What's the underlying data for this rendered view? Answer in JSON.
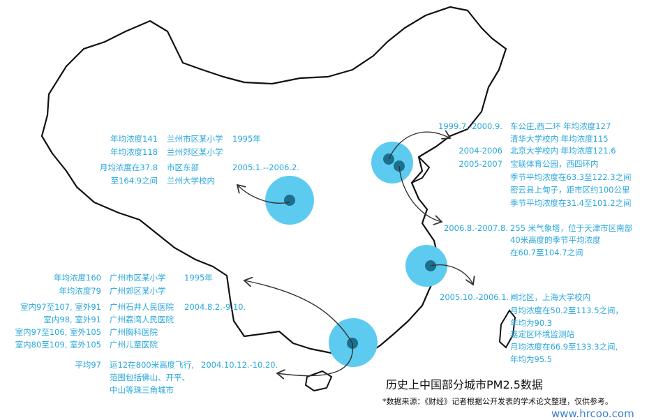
{
  "title": "历史上中国部分城市PM2.5数据",
  "source": "*数据来源：《财经》记者根据公开发表的学术论文整理，仅供参考。",
  "watermark": "www.hrcoo.com",
  "colors": {
    "text": "#2aa7dc",
    "circle": "#5ccbef",
    "dot": "#1c6f8e"
  },
  "lanzhou": {
    "rows": [
      {
        "value": "年均浓度141",
        "site": "兰州市区某小学",
        "date": "1995年"
      },
      {
        "value": "年均浓度118",
        "site": "兰州郊区某小学",
        "date": ""
      },
      {
        "value": "月均浓度在37.8",
        "site": "市区东部",
        "date": "2005.1.--2006.2."
      },
      {
        "value": "至164.9之间",
        "site": "兰州大学校内",
        "date": ""
      }
    ]
  },
  "beijing": {
    "rows": [
      {
        "date": "1999.7.-2000.9.",
        "text": "车公庄,西二环    年均浓度127"
      },
      {
        "date": "",
        "text": "清华大学校内    年均浓度115"
      },
      {
        "date": "2004-2006",
        "text": "北京大学校内    年均浓度121.6"
      },
      {
        "date": "2005-2007",
        "text": "宝联体育公园，西四环内"
      },
      {
        "date": "",
        "text": "季节平均浓度在63.3至122.3之间"
      },
      {
        "date": "",
        "text": "密云县上甸子，距市区约100公里"
      },
      {
        "date": "",
        "text": "季节平均浓度在31.4至101.2之间"
      }
    ]
  },
  "tianjin": {
    "date": "2006.8.-2007.8.",
    "lines": [
      "255 米气象塔，位于天津市区南部",
      "40米高度的季节平均浓度",
      "在60.7至104.7之间"
    ]
  },
  "shanghai": {
    "date": "2005.10.-2006.1.",
    "lines": [
      "闸北区，上海大学校内",
      "月均浓度在50.2至113.5之间，",
      "年均为90.3",
      "嘉定区环境监测站",
      "月均浓度在66.9至133.3之间,",
      "年均为95.5"
    ]
  },
  "guangzhou": {
    "rows": [
      {
        "value": "年均浓度160",
        "site": "广州市区某小学",
        "date": "1995年"
      },
      {
        "value": "年均浓度79",
        "site": "广州郊区某小学",
        "date": ""
      },
      {
        "value": "室内97至107, 室外91",
        "site": "广州石井人民医院",
        "date": "2004.8.2.-9.10."
      },
      {
        "value": "室内98, 室外91",
        "site": "广州荔湾人民医院",
        "date": ""
      },
      {
        "value": "室内97至106, 室外105",
        "site": "广州胸科医院",
        "date": ""
      },
      {
        "value": "室内80至109, 室外105",
        "site": "广州儿童医院",
        "date": ""
      }
    ],
    "flight": {
      "value": "平均97",
      "lines": [
        "运12在800米高度飞行,",
        "范围包括佛山、开平、",
        "中山等珠三角城市"
      ],
      "date": "2004.10.12.-10.20."
    }
  }
}
